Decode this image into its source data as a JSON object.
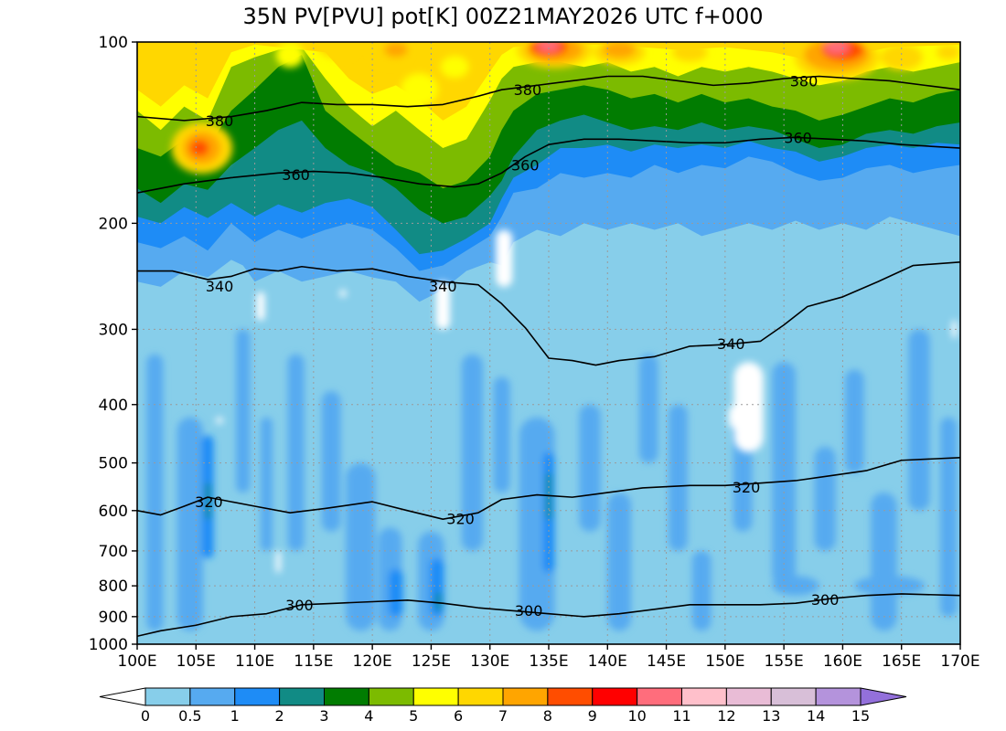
{
  "chart_data": {
    "type": "contour",
    "title": "35N PV[PVU] pot[K] 00Z21MAY2026 UTC f+000",
    "x_ticks": [
      "100E",
      "105E",
      "110E",
      "115E",
      "120E",
      "125E",
      "130E",
      "135E",
      "140E",
      "145E",
      "150E",
      "155E",
      "160E",
      "165E",
      "170E"
    ],
    "x_range": [
      100,
      170
    ],
    "y_axis": {
      "scale": "log",
      "inverted": true,
      "range": [
        1000,
        100
      ]
    },
    "y_ticks": [
      100,
      200,
      300,
      400,
      500,
      600,
      700,
      800,
      900,
      1000
    ],
    "grid": "dotted",
    "pv_levels": [
      "0",
      "0.5",
      "1",
      "2",
      "3",
      "4",
      "5",
      "6",
      "7",
      "8",
      "9",
      "10",
      "11",
      "12",
      "13",
      "14",
      "15"
    ],
    "pv_colors": [
      "#87ceea",
      "#56aaf0",
      "#1e8cf6",
      "#118b85",
      "#017c01",
      "#7cbb00",
      "#ffff00",
      "#ffd700",
      "#ffa500",
      "#ff4d00",
      "#ff0000",
      "#ff6d7c",
      "#ffc0cb",
      "#e9bcd6",
      "#d8bfd8",
      "#b493dc",
      "#9370db"
    ],
    "theta_contours": [
      {
        "label": "300",
        "points": [
          [
            100,
            970
          ],
          [
            102,
            950
          ],
          [
            105,
            930
          ],
          [
            108,
            900
          ],
          [
            111,
            890
          ],
          [
            114,
            860
          ],
          [
            117,
            855
          ],
          [
            120,
            850
          ],
          [
            123,
            845
          ],
          [
            126,
            855
          ],
          [
            129,
            870
          ],
          [
            132,
            880
          ],
          [
            135,
            890
          ],
          [
            138,
            900
          ],
          [
            141,
            890
          ],
          [
            144,
            875
          ],
          [
            147,
            860
          ],
          [
            150,
            860
          ],
          [
            153,
            860
          ],
          [
            156,
            855
          ],
          [
            159,
            840
          ],
          [
            162,
            830
          ],
          [
            165,
            825
          ],
          [
            170,
            830
          ]
        ],
        "label_at": [
          [
            113.8,
            861
          ],
          [
            133.3,
            879
          ],
          [
            158.5,
            842
          ]
        ]
      },
      {
        "label": "320",
        "points": [
          [
            100,
            600
          ],
          [
            102,
            610
          ],
          [
            104,
            590
          ],
          [
            106,
            570
          ],
          [
            108,
            580
          ],
          [
            110,
            590
          ],
          [
            113,
            605
          ],
          [
            116,
            595
          ],
          [
            120,
            580
          ],
          [
            123,
            600
          ],
          [
            126,
            620
          ],
          [
            129,
            605
          ],
          [
            131,
            575
          ],
          [
            134,
            565
          ],
          [
            137,
            570
          ],
          [
            140,
            560
          ],
          [
            143,
            550
          ],
          [
            147,
            545
          ],
          [
            150,
            545
          ],
          [
            153,
            540
          ],
          [
            156,
            535
          ],
          [
            159,
            525
          ],
          [
            162,
            515
          ],
          [
            165,
            495
          ],
          [
            170,
            490
          ]
        ],
        "label_at": [
          [
            106.1,
            580
          ],
          [
            127.5,
            618
          ],
          [
            151.8,
            548
          ]
        ]
      },
      {
        "label": "340",
        "points": [
          [
            100,
            240
          ],
          [
            103,
            240
          ],
          [
            106,
            248
          ],
          [
            108,
            245
          ],
          [
            110,
            238
          ],
          [
            112,
            240
          ],
          [
            114,
            236
          ],
          [
            117,
            240
          ],
          [
            120,
            238
          ],
          [
            123,
            245
          ],
          [
            126,
            250
          ],
          [
            129,
            253
          ],
          [
            131,
            272
          ],
          [
            133,
            298
          ],
          [
            135,
            335
          ],
          [
            137,
            338
          ],
          [
            139,
            344
          ],
          [
            141,
            338
          ],
          [
            144,
            333
          ],
          [
            147,
            320
          ],
          [
            150,
            318
          ],
          [
            153,
            314
          ],
          [
            155,
            295
          ],
          [
            157,
            275
          ],
          [
            160,
            265
          ],
          [
            163,
            250
          ],
          [
            166,
            235
          ],
          [
            170,
            232
          ]
        ],
        "label_at": [
          [
            107,
            254
          ],
          [
            126,
            254
          ],
          [
            150.5,
            317
          ]
        ]
      },
      {
        "label": "360",
        "points": [
          [
            100,
            178
          ],
          [
            104,
            172
          ],
          [
            108,
            168
          ],
          [
            112,
            165
          ],
          [
            115,
            164
          ],
          [
            118,
            165
          ],
          [
            121,
            168
          ],
          [
            124,
            172
          ],
          [
            127,
            174
          ],
          [
            129,
            172
          ],
          [
            131,
            165
          ],
          [
            133,
            155
          ],
          [
            135,
            148
          ],
          [
            138,
            145
          ],
          [
            141,
            145
          ],
          [
            144,
            146
          ],
          [
            147,
            147
          ],
          [
            150,
            147
          ],
          [
            153,
            145
          ],
          [
            156,
            144
          ],
          [
            159,
            145
          ],
          [
            162,
            146
          ],
          [
            165,
            148
          ],
          [
            170,
            150
          ]
        ],
        "label_at": [
          [
            113.5,
            166
          ],
          [
            133,
            160
          ],
          [
            156.2,
            144
          ]
        ]
      },
      {
        "label": "380",
        "points": [
          [
            100,
            133
          ],
          [
            104,
            135
          ],
          [
            108,
            133
          ],
          [
            111,
            130
          ],
          [
            114,
            126
          ],
          [
            117,
            127
          ],
          [
            120,
            127
          ],
          [
            123,
            128
          ],
          [
            126,
            127
          ],
          [
            129,
            123
          ],
          [
            131,
            120
          ],
          [
            134,
            118
          ],
          [
            137,
            116
          ],
          [
            140,
            114
          ],
          [
            143,
            114
          ],
          [
            146,
            116
          ],
          [
            149,
            118
          ],
          [
            152,
            117
          ],
          [
            155,
            115
          ],
          [
            158,
            114
          ],
          [
            161,
            115
          ],
          [
            164,
            116
          ],
          [
            167,
            118
          ],
          [
            170,
            120
          ]
        ],
        "label_at": [
          [
            107,
            135
          ],
          [
            133.2,
            120
          ],
          [
            156.7,
            116
          ]
        ]
      }
    ]
  }
}
